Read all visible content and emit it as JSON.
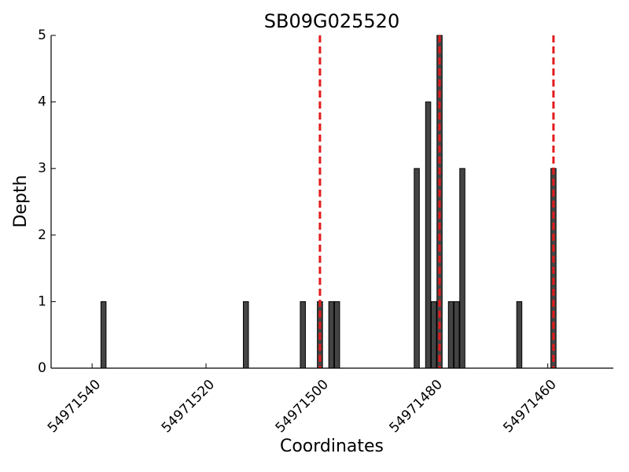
{
  "chart_data": {
    "type": "bar",
    "title": "SB09G025520",
    "xlabel": "Coordinates",
    "ylabel": "Depth",
    "x": [
      54971538,
      54971513,
      54971503,
      54971500,
      54971498,
      54971497,
      54971483,
      54971481,
      54971480,
      54971479,
      54971477,
      54971476,
      54971475,
      54971465,
      54971459
    ],
    "values": [
      1,
      1,
      1,
      1,
      1,
      1,
      3,
      4,
      1,
      5,
      1,
      1,
      3,
      1,
      3
    ],
    "color": "#444444",
    "xlim": [
      54971547.2,
      54971448.5
    ],
    "xticks": [
      54971540,
      54971520,
      54971500,
      54971480,
      54971460
    ],
    "ylim": [
      0,
      5
    ],
    "yticks": [
      0,
      1,
      2,
      3,
      4,
      5
    ],
    "vlines": {
      "x": [
        54971500,
        54971479,
        54971459
      ],
      "color": "#e31a1c"
    }
  }
}
